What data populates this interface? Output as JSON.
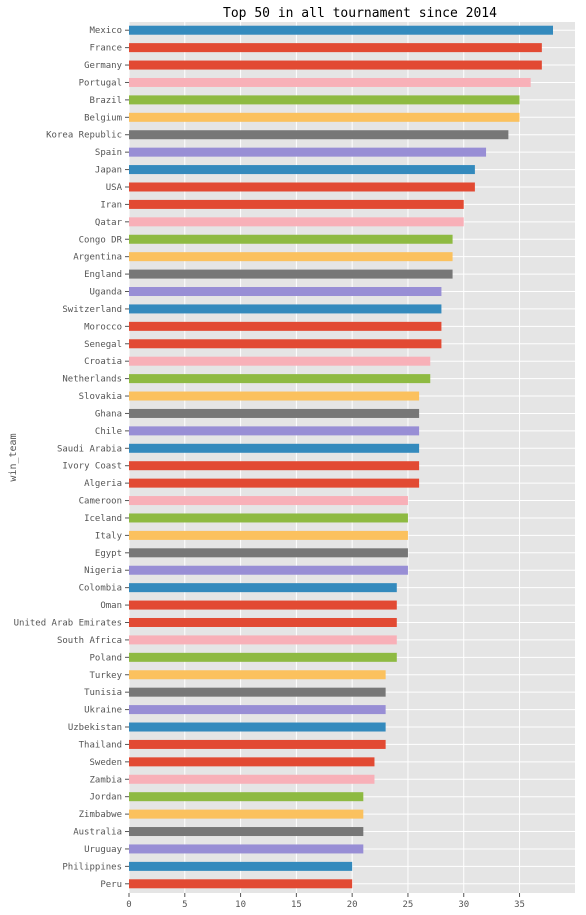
{
  "chart_data": {
    "type": "bar",
    "orientation": "horizontal",
    "title": "Top 50 in all tournament since 2014",
    "xlabel": "",
    "ylabel": "win_team",
    "xlim": [
      0,
      40
    ],
    "xticks": [
      0,
      5,
      10,
      15,
      20,
      25,
      30,
      35
    ],
    "grid": true,
    "categories": [
      "Mexico",
      "France",
      "Germany",
      "Portugal",
      "Brazil",
      "Belgium",
      "Korea Republic",
      "Spain",
      "Japan",
      "USA",
      "Iran",
      "Qatar",
      "Congo DR",
      "Argentina",
      "England",
      "Uganda",
      "Switzerland",
      "Morocco",
      "Senegal",
      "Croatia",
      "Netherlands",
      "Slovakia",
      "Ghana",
      "Chile",
      "Saudi Arabia",
      "Ivory Coast",
      "Algeria",
      "Cameroon",
      "Iceland",
      "Italy",
      "Egypt",
      "Nigeria",
      "Colombia",
      "Oman",
      "United Arab Emirates",
      "South Africa",
      "Poland",
      "Turkey",
      "Tunisia",
      "Ukraine",
      "Uzbekistan",
      "Thailand",
      "Sweden",
      "Zambia",
      "Jordan",
      "Zimbabwe",
      "Australia",
      "Uruguay",
      "Philippines",
      "Peru"
    ],
    "values": [
      38,
      37,
      37,
      36,
      35,
      35,
      34,
      32,
      31,
      31,
      30,
      30,
      29,
      29,
      29,
      28,
      28,
      28,
      28,
      27,
      27,
      26,
      26,
      26,
      26,
      26,
      26,
      25,
      25,
      25,
      25,
      25,
      24,
      24,
      24,
      24,
      24,
      23,
      23,
      23,
      23,
      23,
      22,
      22,
      21,
      21,
      21,
      21,
      20,
      20
    ],
    "colors": [
      "#348abd",
      "#e24a33",
      "#e24a33",
      "#f8b0b8",
      "#8eba42",
      "#fbc15e",
      "#777777",
      "#988ed5",
      "#348abd",
      "#e24a33",
      "#e24a33",
      "#f8b0b8",
      "#8eba42",
      "#fbc15e",
      "#777777",
      "#988ed5",
      "#348abd",
      "#e24a33",
      "#e24a33",
      "#f8b0b8",
      "#8eba42",
      "#fbc15e",
      "#777777",
      "#988ed5",
      "#348abd",
      "#e24a33",
      "#e24a33",
      "#f8b0b8",
      "#8eba42",
      "#fbc15e",
      "#777777",
      "#988ed5",
      "#348abd",
      "#e24a33",
      "#e24a33",
      "#f8b0b8",
      "#8eba42",
      "#fbc15e",
      "#777777",
      "#988ed5",
      "#348abd",
      "#e24a33",
      "#e24a33",
      "#f8b0b8",
      "#8eba42",
      "#fbc15e",
      "#777777",
      "#988ed5",
      "#348abd",
      "#e24a33"
    ],
    "background": "#e5e5e5",
    "grid_color": "#ffffff"
  }
}
